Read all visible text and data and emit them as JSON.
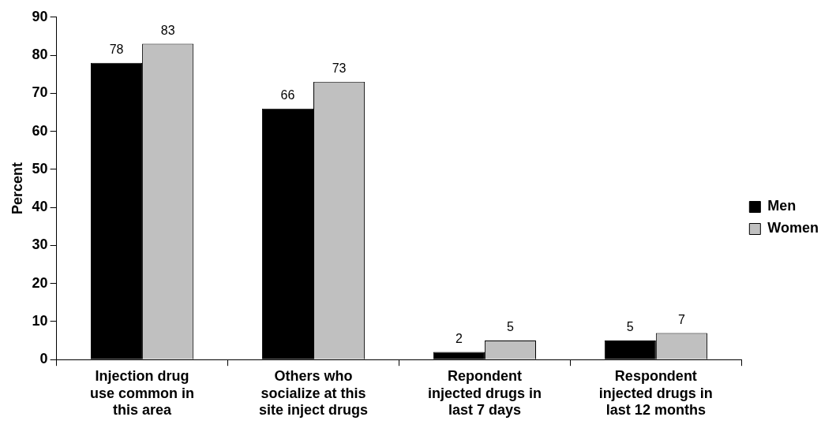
{
  "chart_data": {
    "type": "bar",
    "ylabel": "Percent",
    "categories": [
      "Injection drug use common in this area",
      "Others who socialize at this site inject drugs",
      "Repondent injected drugs in last 7 days",
      "Respondent injected drugs in last 12 months"
    ],
    "series": [
      {
        "name": "Men",
        "color": "#000000",
        "values": [
          78,
          66,
          2,
          5
        ]
      },
      {
        "name": "Women",
        "color": "#c0c0c0",
        "values": [
          83,
          73,
          5,
          7
        ]
      }
    ],
    "ylim": [
      0,
      90
    ],
    "yticks": [
      0,
      10,
      20,
      30,
      40,
      50,
      60,
      70,
      80,
      90
    ],
    "data_labels": true,
    "legend": "right"
  }
}
